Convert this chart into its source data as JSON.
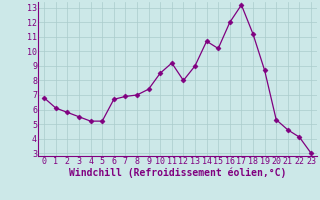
{
  "x": [
    0,
    1,
    2,
    3,
    4,
    5,
    6,
    7,
    8,
    9,
    10,
    11,
    12,
    13,
    14,
    15,
    16,
    17,
    18,
    19,
    20,
    21,
    22,
    23
  ],
  "y": [
    6.8,
    6.1,
    5.8,
    5.5,
    5.2,
    5.2,
    6.7,
    6.9,
    7.0,
    7.4,
    8.5,
    9.2,
    8.0,
    9.0,
    10.7,
    10.2,
    12.0,
    13.2,
    11.2,
    8.7,
    5.3,
    4.6,
    4.1,
    3.0
  ],
  "line_color": "#800080",
  "marker": "D",
  "marker_size": 2.5,
  "bg_color": "#cce8e8",
  "grid_color": "#aacccc",
  "xlabel": "Windchill (Refroidissement éolien,°C)",
  "ylabel": "",
  "xlim": [
    -0.5,
    23.5
  ],
  "ylim": [
    2.8,
    13.4
  ],
  "yticks": [
    3,
    4,
    5,
    6,
    7,
    8,
    9,
    10,
    11,
    12,
    13
  ],
  "xticks": [
    0,
    1,
    2,
    3,
    4,
    5,
    6,
    7,
    8,
    9,
    10,
    11,
    12,
    13,
    14,
    15,
    16,
    17,
    18,
    19,
    20,
    21,
    22,
    23
  ],
  "tick_fontsize": 6.0,
  "xlabel_fontsize": 7.0
}
